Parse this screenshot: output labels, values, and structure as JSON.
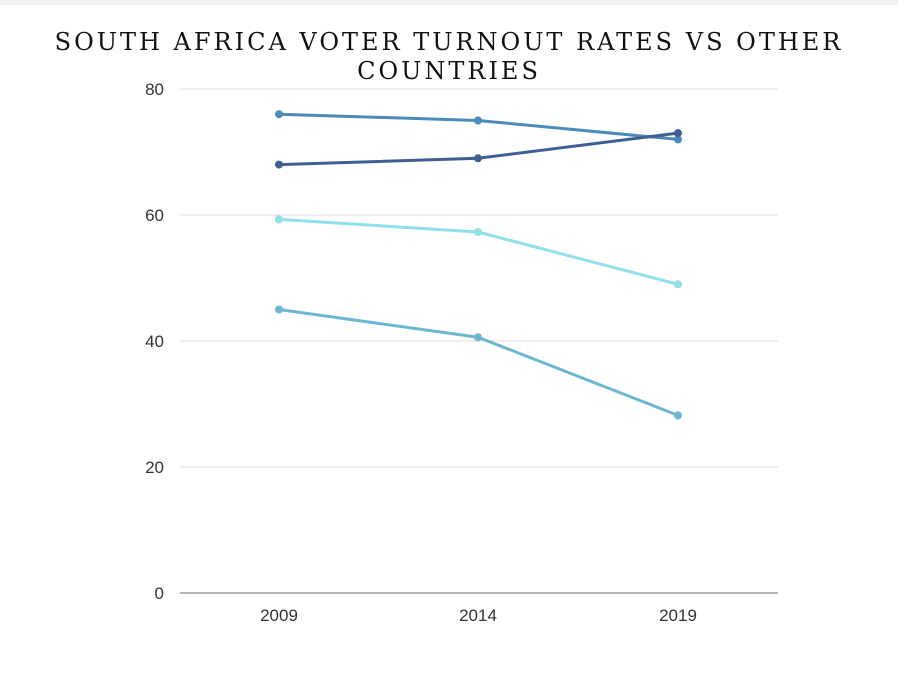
{
  "chart_data": {
    "type": "line",
    "title": "SOUTH AFRICA VOTER TURNOUT RATES VS OTHER COUNTRIES",
    "x": [
      "2009",
      "2014",
      "2019"
    ],
    "ylim": [
      0,
      80
    ],
    "yticks": [
      0,
      20,
      40,
      60,
      80
    ],
    "grid": true,
    "series": [
      {
        "values": [
          76,
          75,
          72
        ],
        "color": "#4a8bb9"
      },
      {
        "values": [
          68,
          69,
          73
        ],
        "color": "#3f5f92"
      },
      {
        "values": [
          59.3,
          57.3,
          49
        ],
        "color": "#8fe0e8"
      },
      {
        "values": [
          45,
          40.6,
          28.2
        ],
        "color": "#6bb7d1"
      }
    ],
    "gridline_color": "#dddddd",
    "axis_color": "#888888"
  }
}
